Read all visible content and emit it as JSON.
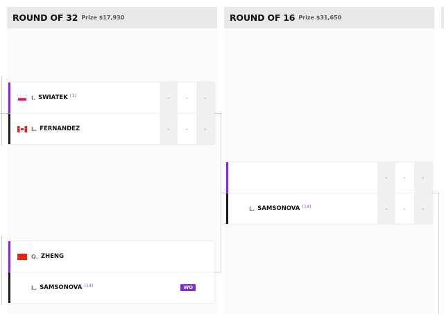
{
  "rounds": [
    {
      "title": "ROUND OF 32",
      "prize": "Prize $17,930"
    },
    {
      "title": "ROUND OF 16",
      "prize": "Prize $31,650"
    }
  ],
  "matches": [
    {
      "players": [
        {
          "initial": "I.",
          "name": "SWIATEK",
          "seed": "(1)",
          "flag": "poland",
          "scores": [
            "-",
            "-",
            "-"
          ]
        },
        {
          "initial": "L.",
          "name": "FERNANDEZ",
          "seed": "",
          "flag": "canada",
          "scores": [
            "-",
            "-",
            "-"
          ]
        }
      ]
    },
    {
      "players": [
        {
          "initial": "Q.",
          "name": "ZHENG",
          "seed": "",
          "flag": "china"
        },
        {
          "initial": "L.",
          "name": "SAMSONOVA",
          "seed": "(14)",
          "badge": "WO"
        }
      ]
    },
    {
      "players": [
        {
          "initial": "",
          "name": "",
          "scores": [
            "-",
            "-",
            "-"
          ]
        },
        {
          "initial": "L.",
          "name": "SAMSONOVA",
          "seed": "(14)",
          "scores": [
            "-",
            "-",
            "-"
          ]
        }
      ]
    }
  ],
  "colors": {
    "accent": "#7a2fdc",
    "winner_border": "#7a2fdc",
    "loser_border": "#1a1a1a"
  }
}
